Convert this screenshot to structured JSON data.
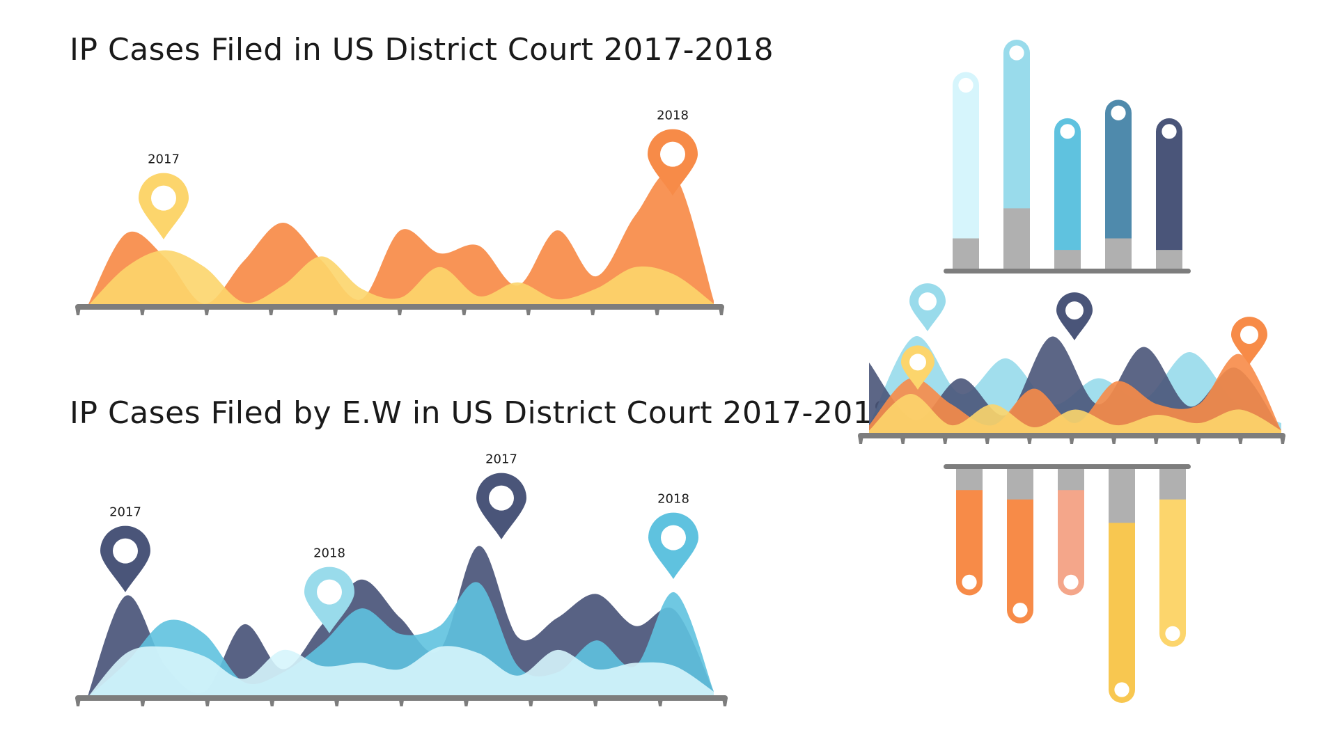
{
  "titles": {
    "top": "IP Cases Filed in US District Court 2017-2018",
    "bottom": "IP Cases Filed by E.W in US District Court 2017-2018"
  },
  "colors": {
    "axis": "#7d7d7d",
    "yellow": "#fcd56c",
    "orange": "#f78b48",
    "navy": "#4a5579",
    "light_blue": "#99dbeb",
    "sky": "#5fc2df",
    "pale_blue": "#d3f3fb",
    "gray": "#b0b0b0",
    "steel": "#4f8aac",
    "pale_cyan": "#d6f5fc",
    "salmon": "#f4a68a",
    "gold": "#f8c750"
  },
  "chart_data": [
    {
      "type": "area",
      "title": "IP Cases Filed in US District Court 2017-2018",
      "markers": [
        {
          "label": "2017",
          "color": "yellow",
          "at_peak": 0
        },
        {
          "label": "2018",
          "color": "orange",
          "at_peak": 1
        }
      ],
      "series": [
        {
          "color": "orange",
          "values": [
            0,
            0.48,
            0.32,
            0.02,
            0.3,
            0.55,
            0.3,
            0.05,
            0.5,
            0.35,
            0.4,
            0.14,
            0.5,
            0.2,
            0.6,
            0.86,
            0.04
          ]
        },
        {
          "color": "yellow",
          "values": [
            0,
            0.26,
            0.37,
            0.26,
            0.03,
            0.14,
            0.33,
            0.12,
            0.06,
            0.26,
            0.07,
            0.16,
            0.05,
            0.12,
            0.26,
            0.21,
            0.02
          ]
        }
      ]
    },
    {
      "type": "area",
      "title": "IP Cases Filed by E.W in US District Court 2017-2018",
      "markers": [
        {
          "label": "2017",
          "color": "navy",
          "at_peak": 0
        },
        {
          "label": "2018",
          "color": "light_blue",
          "at_peak": 1
        },
        {
          "label": "2017",
          "color": "navy",
          "at_peak": 2
        },
        {
          "label": "2018",
          "color": "sky",
          "at_peak": 3
        }
      ],
      "series": [
        {
          "color": "navy",
          "values": [
            0,
            0.64,
            0.2,
            0.04,
            0.46,
            0.18,
            0.46,
            0.74,
            0.5,
            0.3,
            0.95,
            0.38,
            0.5,
            0.65,
            0.45,
            0.55,
            0.04
          ]
        },
        {
          "color": "sky",
          "values": [
            0,
            0.22,
            0.48,
            0.4,
            0.1,
            0.16,
            0.34,
            0.56,
            0.4,
            0.45,
            0.72,
            0.2,
            0.16,
            0.36,
            0.2,
            0.66,
            0.04
          ]
        },
        {
          "color": "pale_cyan",
          "values": [
            0,
            0.28,
            0.32,
            0.26,
            0.12,
            0.3,
            0.2,
            0.22,
            0.18,
            0.32,
            0.28,
            0.14,
            0.3,
            0.18,
            0.22,
            0.2,
            0.04
          ]
        }
      ]
    },
    {
      "type": "bar",
      "colors": [
        "pale_cyan",
        "light_blue",
        "sky",
        "steel",
        "navy"
      ],
      "values": [
        0.86,
        1.0,
        0.66,
        0.74,
        0.66
      ],
      "base": [
        0.14,
        0.27,
        0.09,
        0.14,
        0.09
      ]
    },
    {
      "type": "area",
      "markers": [
        {
          "color": "light_blue",
          "at_peak": 0
        },
        {
          "color": "yellow",
          "at_peak": 1
        },
        {
          "color": "navy",
          "at_peak": 2
        },
        {
          "color": "orange",
          "at_peak": 3
        }
      ],
      "series": [
        {
          "color": "light_blue",
          "values": [
            0.1,
            0.95,
            0.4,
            0.74,
            0.3,
            0.55,
            0.35,
            0.8,
            0.32,
            0.12
          ]
        },
        {
          "color": "navy",
          "values": [
            0.7,
            0.15,
            0.55,
            0.2,
            0.95,
            0.3,
            0.85,
            0.28,
            0.65,
            0.05
          ]
        },
        {
          "color": "orange",
          "values": [
            0.1,
            0.55,
            0.3,
            0.1,
            0.45,
            0.12,
            0.52,
            0.3,
            0.3,
            0.78,
            0.05
          ]
        },
        {
          "color": "yellow",
          "values": [
            0.05,
            0.4,
            0.1,
            0.3,
            0.08,
            0.25,
            0.1,
            0.2,
            0.12,
            0.25,
            0.05
          ]
        }
      ]
    },
    {
      "type": "bar",
      "colors": [
        "orange",
        "orange",
        "salmon",
        "gold",
        "yellow"
      ],
      "values": [
        0.54,
        0.66,
        0.54,
        1.0,
        0.76
      ],
      "base": [
        0.09,
        0.13,
        0.09,
        0.23,
        0.13
      ]
    }
  ]
}
